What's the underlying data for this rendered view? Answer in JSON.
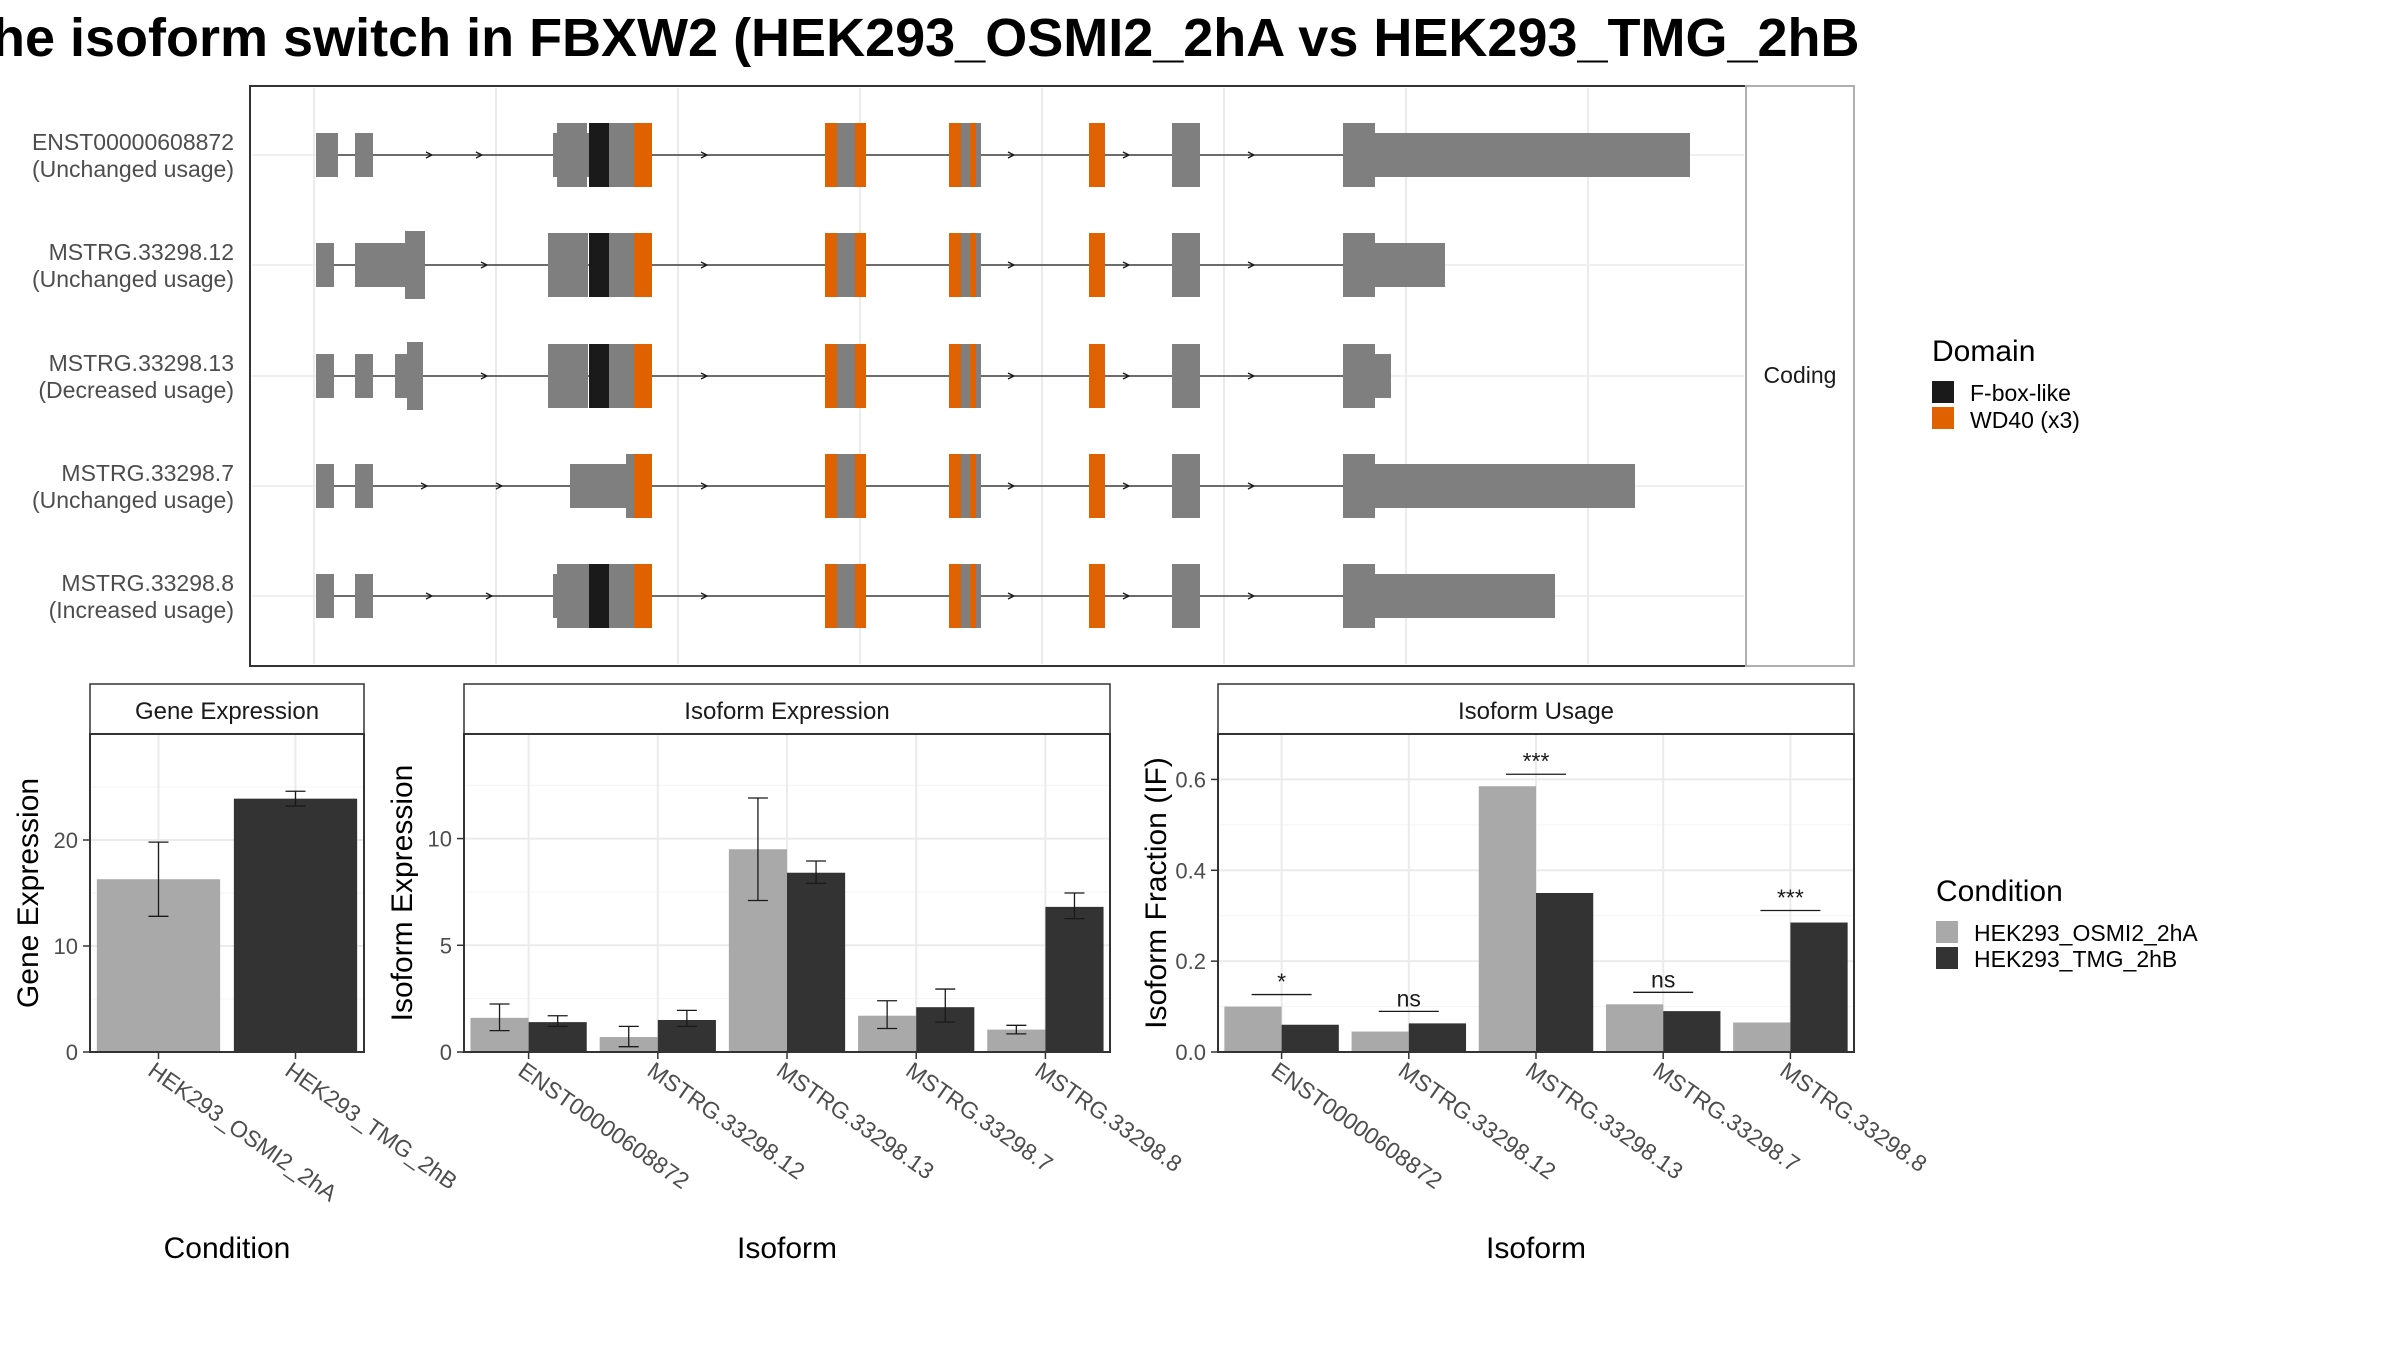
{
  "title": "he isoform switch in FBXW2 (HEK293_OSMI2_2hA vs HEK293_TMG_2hB",
  "colors": {
    "exon": "#7f7f7f",
    "fbox": "#1a1a1a",
    "wd40": "#e06100",
    "cond_a": "#a9a9a9",
    "cond_b": "#333333"
  },
  "structure": {
    "strip_label": "Coding",
    "transcripts": [
      {
        "id": "ENST00000608872",
        "usage": "(Unchanged usage)"
      },
      {
        "id": "MSTRG.33298.12",
        "usage": "(Unchanged usage)"
      },
      {
        "id": "MSTRG.33298.13",
        "usage": "(Decreased usage)"
      },
      {
        "id": "MSTRG.33298.7",
        "usage": "(Unchanged usage)"
      },
      {
        "id": "MSTRG.33298.8",
        "usage": "(Increased usage)"
      }
    ],
    "domain_legend": {
      "title": "Domain",
      "items": [
        {
          "label": "F-box-like",
          "color": "#1a1a1a"
        },
        {
          "label": "WD40 (x3)",
          "color": "#e06100"
        }
      ]
    }
  },
  "chart_data": [
    {
      "type": "bar",
      "panel": "Gene Expression",
      "categories": [
        "HEK293_OSMI2_2hA",
        "HEK293_TMG_2hB"
      ],
      "values": [
        16.3,
        23.9
      ],
      "error_low": [
        12.8,
        23.2
      ],
      "error_high": [
        19.8,
        24.6
      ],
      "xlabel": "Condition",
      "ylabel": "Gene Expression",
      "ylim": [
        0,
        30
      ],
      "yticks": [
        0,
        10,
        20
      ]
    },
    {
      "type": "bar",
      "panel": "Isoform Expression",
      "categories": [
        "ENST00000608872",
        "MSTRG.33298.12",
        "MSTRG.33298.13",
        "MSTRG.33298.7",
        "MSTRG.33298.8"
      ],
      "series": [
        {
          "name": "HEK293_OSMI2_2hA",
          "values": [
            1.6,
            0.7,
            9.5,
            1.7,
            1.05
          ],
          "error_low": [
            1.0,
            0.25,
            7.1,
            1.1,
            0.85
          ],
          "error_high": [
            2.25,
            1.2,
            11.9,
            2.4,
            1.25
          ]
        },
        {
          "name": "HEK293_TMG_2hB",
          "values": [
            1.4,
            1.5,
            8.4,
            2.1,
            6.8
          ],
          "error_low": [
            1.2,
            1.2,
            7.9,
            1.4,
            6.25
          ],
          "error_high": [
            1.7,
            1.95,
            8.95,
            2.95,
            7.45
          ]
        }
      ],
      "xlabel": "Isoform",
      "ylabel": "Isoform Expression",
      "ylim": [
        0,
        14.9
      ],
      "yticks": [
        0,
        5,
        10
      ]
    },
    {
      "type": "bar",
      "panel": "Isoform Usage",
      "categories": [
        "ENST00000608872",
        "MSTRG.33298.12",
        "MSTRG.33298.13",
        "MSTRG.33298.7",
        "MSTRG.33298.8"
      ],
      "series": [
        {
          "name": "HEK293_OSMI2_2hA",
          "values": [
            0.1,
            0.045,
            0.585,
            0.105,
            0.065
          ]
        },
        {
          "name": "HEK293_TMG_2hB",
          "values": [
            0.06,
            0.063,
            0.35,
            0.09,
            0.285
          ]
        }
      ],
      "significance": [
        "*",
        "ns",
        "***",
        "ns",
        "***"
      ],
      "xlabel": "Isoform",
      "ylabel": "Isoform Fraction (IF)",
      "ylim": [
        0,
        0.7
      ],
      "yticks": [
        "0.0",
        "0.2",
        "0.4",
        "0.6"
      ]
    }
  ],
  "condition_legend": {
    "title": "Condition",
    "items": [
      {
        "label": "HEK293_OSMI2_2hA",
        "color": "#a9a9a9"
      },
      {
        "label": "HEK293_TMG_2hB",
        "color": "#333333"
      }
    ]
  }
}
